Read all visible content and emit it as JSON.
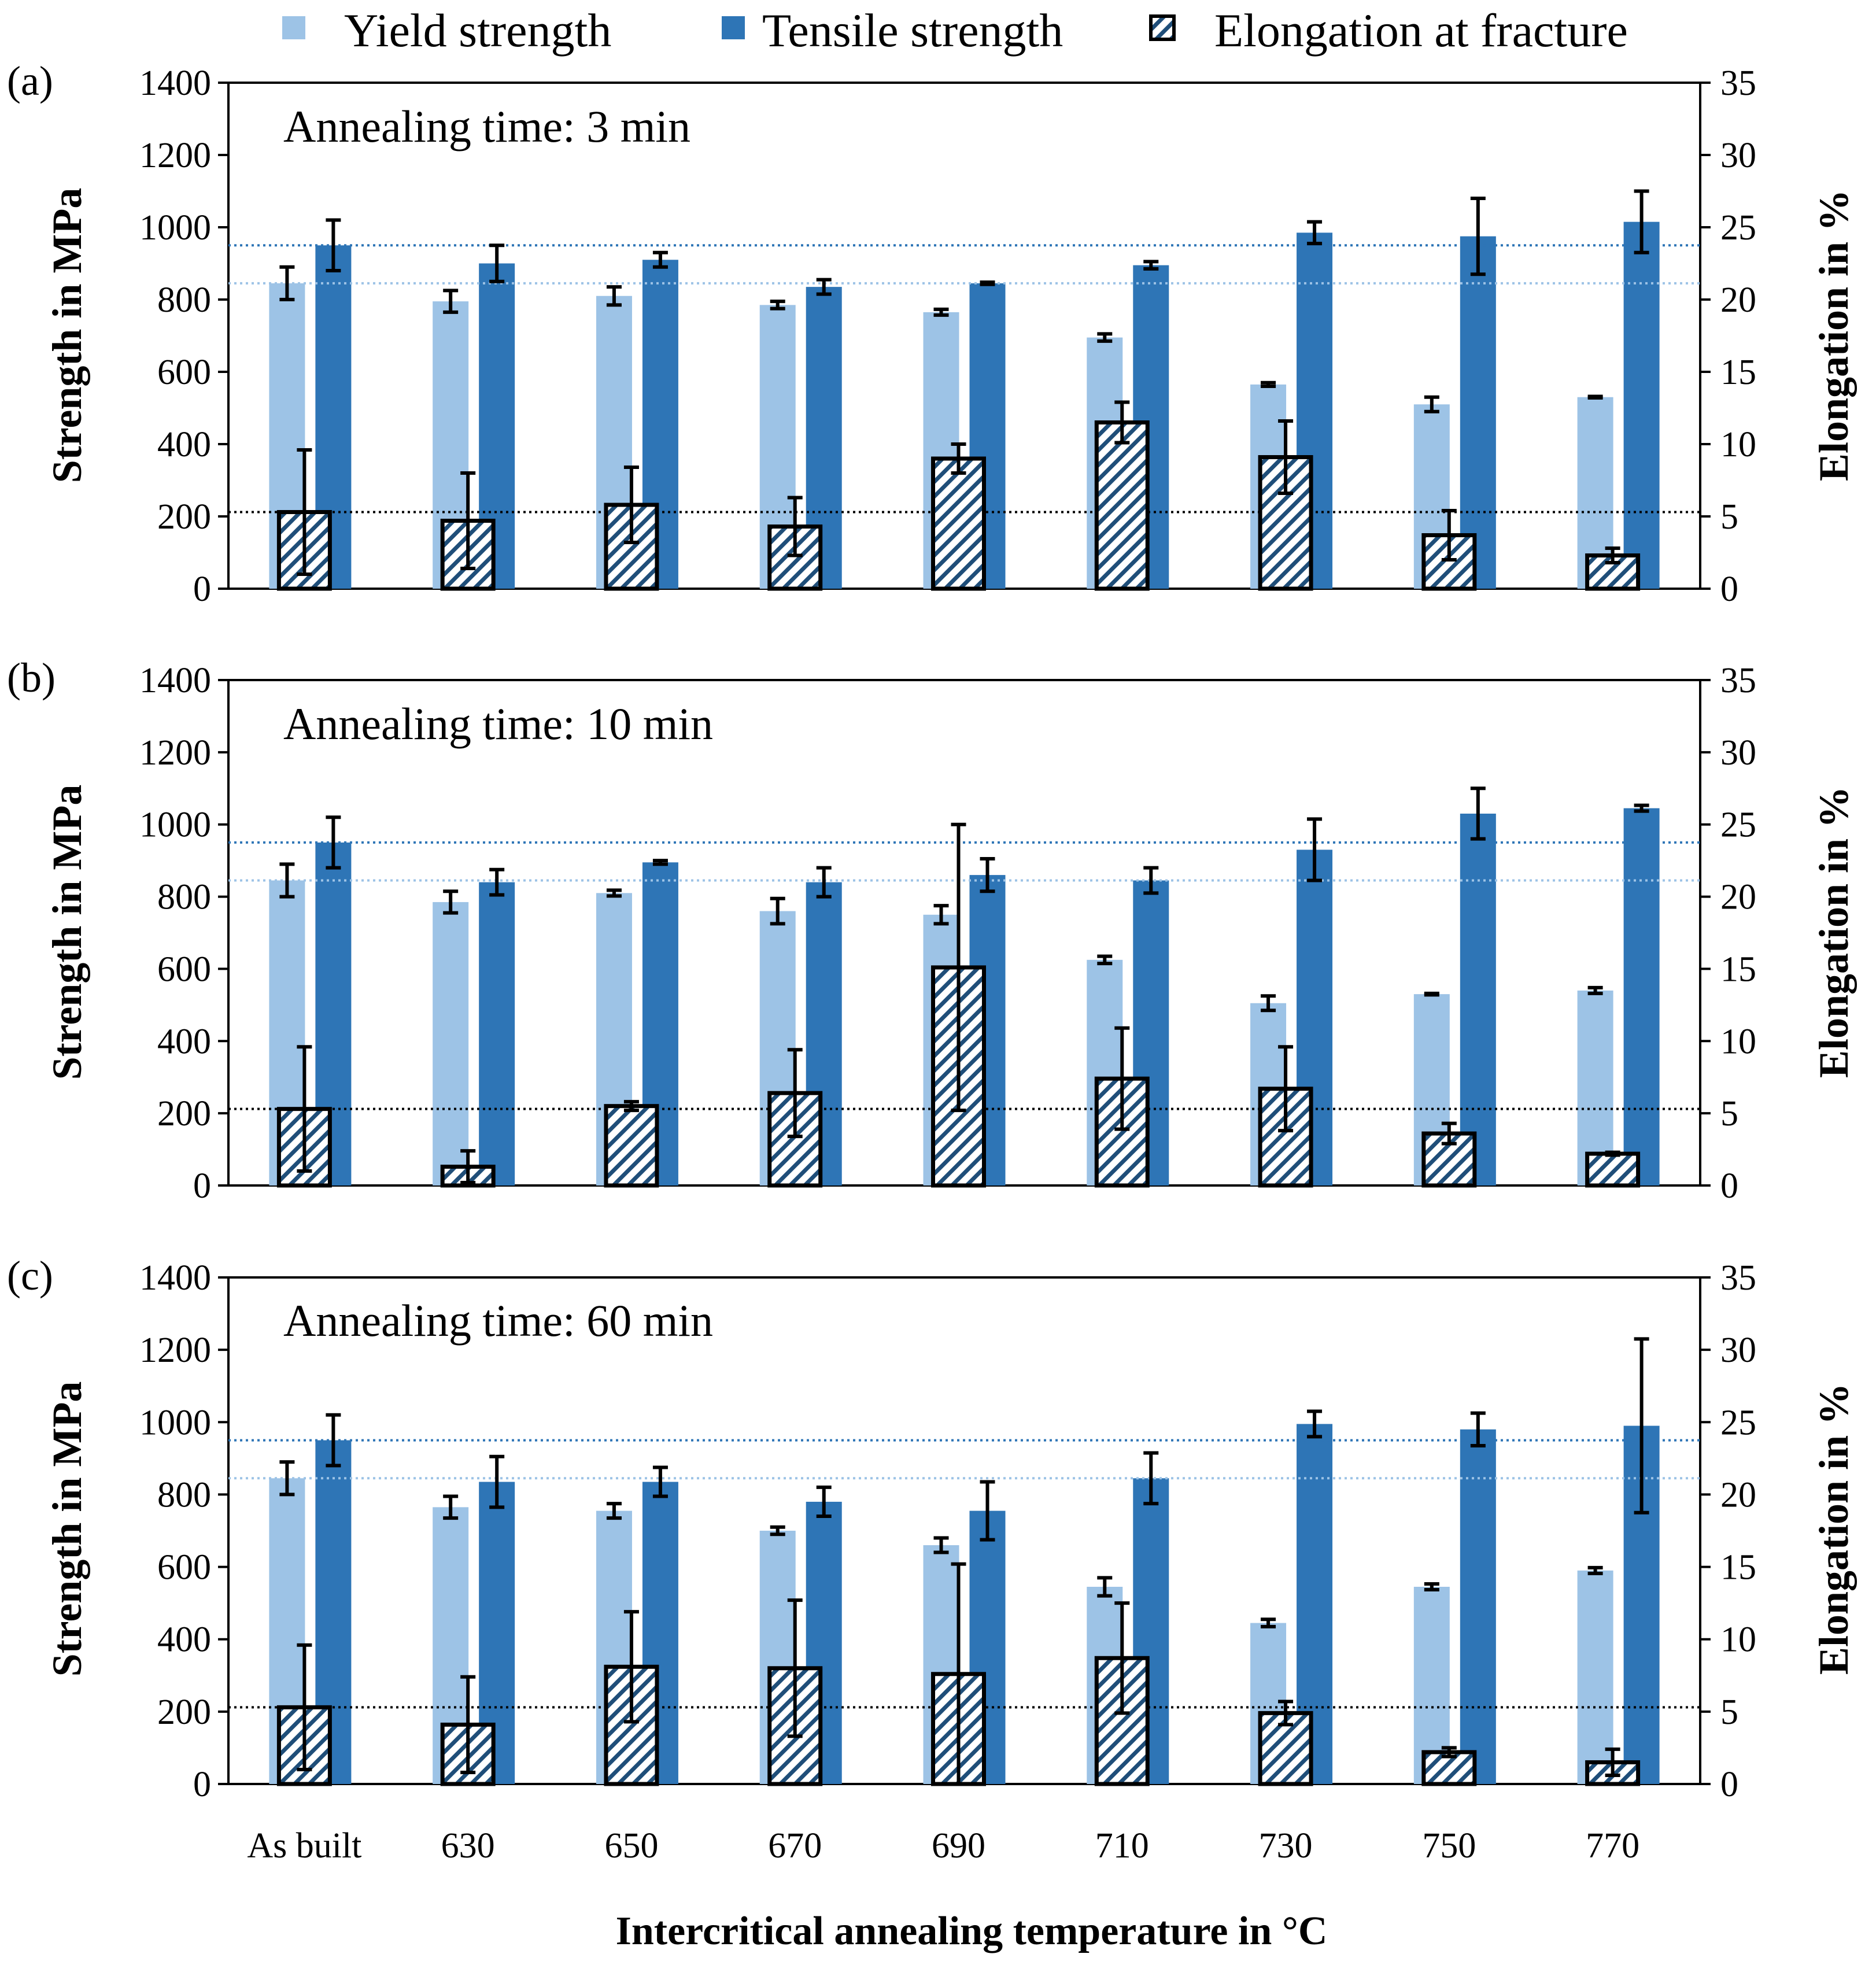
{
  "colors": {
    "yield": "#9DC3E6",
    "tensile": "#2E75B6",
    "elongation_hatch": "#1F4E79",
    "ref_yield": "#9DC3E6",
    "ref_tensile": "#2E75B6",
    "ref_elongation": "#000000"
  },
  "chart_data": {
    "type": "bar",
    "xlabel": "Intercritical annealing temperature in °C",
    "ylabel_left": "Strength in MPa",
    "ylabel_right": "Elongation in %",
    "categories": [
      "As built",
      "630",
      "650",
      "670",
      "690",
      "710",
      "730",
      "750",
      "770"
    ],
    "ylim_left": [
      0,
      1400
    ],
    "yticks_left": [
      0,
      200,
      400,
      600,
      800,
      1000,
      1200,
      1400
    ],
    "ylim_right": [
      0,
      35
    ],
    "yticks_right": [
      0,
      5,
      10,
      15,
      20,
      25,
      30,
      35
    ],
    "legend": [
      "Yield strength",
      "Tensile strength",
      "Elongation at fracture"
    ],
    "reference_lines": {
      "tensile_strength_as_built": 950,
      "yield_strength_as_built": 845,
      "elongation_as_built": 5.3
    },
    "panels": [
      {
        "tag": "(a)",
        "annotation": "Annealing time: 3 min",
        "series": [
          {
            "name": "Yield strength",
            "axis": "left",
            "values": [
              845,
              795,
              810,
              785,
              765,
              695,
              565,
              510,
              530
            ],
            "errors": [
              45,
              30,
              25,
              10,
              8,
              10,
              5,
              20,
              2
            ]
          },
          {
            "name": "Tensile strength",
            "axis": "left",
            "values": [
              950,
              900,
              910,
              835,
              845,
              895,
              985,
              975,
              1015
            ],
            "errors": [
              70,
              50,
              20,
              20,
              3,
              10,
              30,
              105,
              85
            ]
          },
          {
            "name": "Elongation at fracture",
            "axis": "right",
            "values": [
              5.3,
              4.7,
              5.8,
              4.3,
              9.0,
              11.5,
              9.1,
              3.7,
              2.3
            ],
            "errors": [
              4.3,
              3.3,
              2.6,
              2.0,
              1.0,
              1.4,
              2.5,
              1.7,
              0.5
            ]
          }
        ]
      },
      {
        "tag": "(b)",
        "annotation": "Annealing time: 10 min",
        "series": [
          {
            "name": "Yield strength",
            "axis": "left",
            "values": [
              845,
              785,
              810,
              760,
              750,
              625,
              505,
              530,
              540
            ],
            "errors": [
              45,
              30,
              8,
              35,
              25,
              10,
              20,
              2,
              8
            ]
          },
          {
            "name": "Tensile strength",
            "axis": "left",
            "values": [
              950,
              840,
              895,
              840,
              860,
              845,
              930,
              1030,
              1045
            ],
            "errors": [
              70,
              35,
              5,
              40,
              45,
              35,
              85,
              70,
              8
            ]
          },
          {
            "name": "Elongation at fracture",
            "axis": "right",
            "values": [
              5.3,
              1.3,
              5.5,
              6.4,
              15.1,
              7.4,
              6.7,
              3.6,
              2.2
            ],
            "errors": [
              4.3,
              1.1,
              0.3,
              3.0,
              9.9,
              3.5,
              2.9,
              0.7,
              0.1
            ]
          }
        ]
      },
      {
        "tag": "(c)",
        "annotation": "Annealing time: 60 min",
        "series": [
          {
            "name": "Yield strength",
            "axis": "left",
            "values": [
              845,
              765,
              755,
              700,
              660,
              545,
              445,
              545,
              590
            ],
            "errors": [
              45,
              30,
              20,
              10,
              20,
              25,
              10,
              8,
              8
            ]
          },
          {
            "name": "Tensile strength",
            "axis": "left",
            "values": [
              950,
              835,
              835,
              780,
              755,
              845,
              995,
              980,
              990
            ],
            "errors": [
              70,
              70,
              40,
              40,
              80,
              70,
              35,
              45,
              240
            ]
          },
          {
            "name": "Elongation at fracture",
            "axis": "right",
            "values": [
              5.3,
              4.1,
              8.1,
              8.0,
              7.6,
              8.7,
              4.9,
              2.2,
              1.5
            ],
            "errors": [
              4.3,
              3.3,
              3.8,
              4.7,
              7.6,
              3.8,
              0.8,
              0.3,
              0.9
            ]
          }
        ]
      }
    ]
  }
}
